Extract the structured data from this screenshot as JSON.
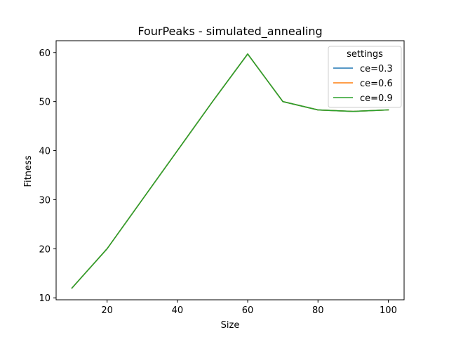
{
  "chart_data": {
    "type": "line",
    "title": "FourPeaks - simulated_annealing",
    "xlabel": "Size",
    "ylabel": "Fitness",
    "x": [
      10,
      20,
      30,
      40,
      50,
      60,
      70,
      80,
      90,
      100
    ],
    "xticks": [
      20,
      40,
      60,
      80,
      100
    ],
    "yticks": [
      10,
      20,
      30,
      40,
      50,
      60
    ],
    "xlim": [
      5.5,
      104.5
    ],
    "ylim": [
      9.6,
      62.4
    ],
    "grid": false,
    "legend": {
      "title": "settings",
      "placement": "top-right"
    },
    "series": [
      {
        "name": "ce=0.3",
        "color": "#1f77b4",
        "values": [
          12,
          20,
          30,
          40,
          50,
          59.7,
          50,
          48.3,
          48,
          48.3
        ]
      },
      {
        "name": "ce=0.6",
        "color": "#ff7f0e",
        "values": [
          12,
          20,
          30,
          40,
          50,
          59.7,
          50,
          48.3,
          48,
          48.3
        ]
      },
      {
        "name": "ce=0.9",
        "color": "#2ca02c",
        "values": [
          12,
          20,
          30,
          40,
          50,
          59.7,
          50,
          48.3,
          48,
          48.3
        ]
      }
    ]
  }
}
